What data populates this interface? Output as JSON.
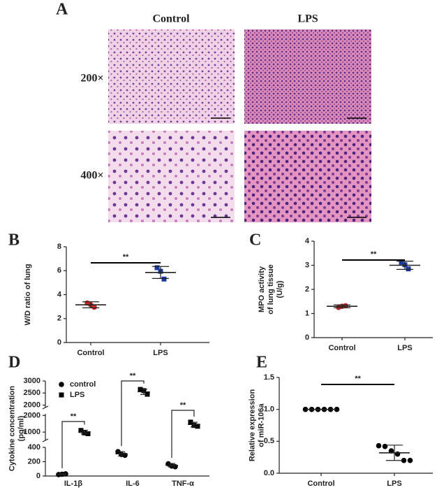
{
  "figure_a": {
    "label": "A",
    "columns": [
      "Control",
      "LPS"
    ],
    "rows": [
      "200×",
      "400×"
    ]
  },
  "chart_data": [
    {
      "type": "dotplot",
      "label": "B",
      "ylabel": [
        "W/D ratio of lung"
      ],
      "categories": [
        "Control",
        "LPS"
      ],
      "points": [
        [
          3.3,
          3.15,
          2.95
        ],
        [
          6.25,
          5.95,
          5.3
        ]
      ],
      "mean": [
        3.15,
        5.85
      ],
      "error": [
        0.25,
        0.5
      ],
      "colors": [
        "#c62828",
        "#1a3a9e"
      ],
      "markers": [
        "circle",
        "square"
      ],
      "ylim": [
        0,
        8
      ],
      "yticks": [
        0,
        2,
        4,
        6,
        8
      ],
      "annotations": [
        "**"
      ]
    },
    {
      "type": "dotplot",
      "label": "C",
      "ylabel": [
        "MPO activity",
        "of lung tissue",
        "(U/g)"
      ],
      "categories": [
        "Control",
        "LPS"
      ],
      "points": [
        [
          1.25,
          1.3,
          1.32
        ],
        [
          3.12,
          3.02,
          2.85
        ]
      ],
      "mean": [
        1.3,
        3.0
      ],
      "error": [
        0.06,
        0.17
      ],
      "colors": [
        "#c62828",
        "#1a3a9e"
      ],
      "markers": [
        "circle",
        "square"
      ],
      "ylim": [
        0,
        4
      ],
      "yticks": [
        0,
        1,
        2,
        3,
        4
      ],
      "annotations": [
        "**"
      ]
    },
    {
      "type": "grouped_dotplot",
      "label": "D",
      "ylabel": [
        "Cytokine concentration",
        "(pg/ml)"
      ],
      "categories": [
        "IL-1β",
        "IL-6",
        "TNF-α"
      ],
      "series": [
        {
          "name": "control",
          "color": "#000000",
          "marker": "circle",
          "points": [
            [
              20,
              25,
              30
            ],
            [
              340,
              300,
              290
            ],
            [
              170,
              140,
              130
            ]
          ],
          "values": [
            25,
            310,
            150
          ],
          "error": [
            6,
            30,
            25
          ]
        },
        {
          "name": "LPS",
          "color": "#000000",
          "marker": "square",
          "points": [
            [
              1100,
              950,
              900
            ],
            [
              2650,
              2600,
              2450
            ],
            [
              1600,
              1400,
              1350
            ]
          ],
          "values": [
            1000,
            2550,
            1450
          ],
          "error": [
            110,
            110,
            140
          ]
        }
      ],
      "segments": [
        {
          "ylim": [
            0,
            400
          ],
          "yticks": [
            0,
            200,
            400
          ]
        },
        {
          "ylim": [
            500,
            2100
          ],
          "yticks": [
            1000,
            2000
          ]
        },
        {
          "ylim": [
            1900,
            3000
          ],
          "yticks": [
            2000,
            2500,
            3000
          ]
        }
      ],
      "annotations": [
        "**",
        "**",
        "**"
      ]
    },
    {
      "type": "dotplot",
      "label": "E",
      "ylabel": [
        "Relative expression",
        "of miR-106a"
      ],
      "categories": [
        "Control",
        "LPS"
      ],
      "points": [
        [
          1,
          1,
          1,
          1,
          1,
          1
        ],
        [
          0.43,
          0.42,
          0.35,
          0.3,
          0.2,
          0.2
        ]
      ],
      "mean": [
        1.0,
        0.32
      ],
      "error": [
        0,
        0.12
      ],
      "colors": [
        "#000000",
        "#000000"
      ],
      "markers": [
        "circle",
        "circle"
      ],
      "ylim": [
        0,
        1.5
      ],
      "yticks": [
        {
          "value": 0,
          "label": "0.0"
        },
        {
          "value": 0.5,
          "label": "0.5"
        },
        {
          "value": 1,
          "label": "1.0"
        },
        {
          "value": 1.5,
          "label": "1.5"
        }
      ],
      "annotations": [
        "**"
      ]
    }
  ]
}
